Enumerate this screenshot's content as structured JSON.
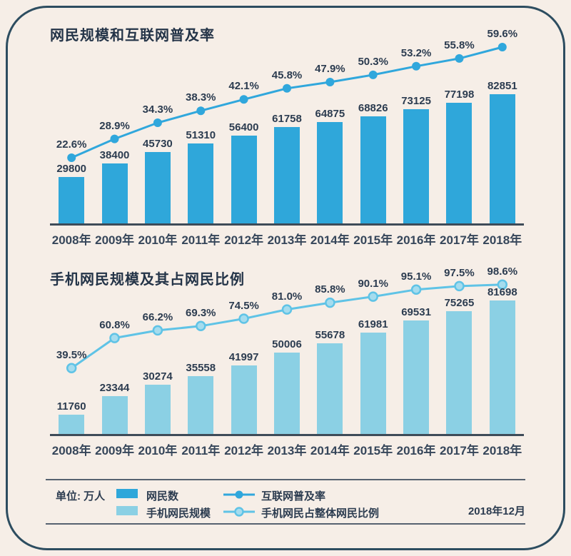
{
  "colors": {
    "background": "#f6eee7",
    "card_border": "#2d4d60",
    "bar_dark": "#2fa7da",
    "bar_light": "#8bd0e4",
    "line_dark": "#30a7dc",
    "line_light": "#5fc3e6",
    "marker_light_fill": "#a5dcee",
    "text": "#2c3c50",
    "axis": "#3e4b58"
  },
  "chart_data": [
    {
      "type": "bar+line",
      "title": "网民规模和互联网普及率",
      "categories": [
        "2008年",
        "2009年",
        "2010年",
        "2011年",
        "2012年",
        "2013年",
        "2014年",
        "2015年",
        "2016年",
        "2017年",
        "2018年"
      ],
      "series": [
        {
          "name": "网民数",
          "type": "bar",
          "unit": "万人",
          "values": [
            29800,
            38400,
            45730,
            51310,
            56400,
            61758,
            64875,
            68826,
            73125,
            77198,
            82851
          ]
        },
        {
          "name": "互联网普及率",
          "type": "line",
          "unit": "%",
          "values": [
            22.6,
            28.9,
            34.3,
            38.3,
            42.1,
            45.8,
            47.9,
            50.3,
            53.2,
            55.8,
            59.6
          ]
        }
      ],
      "baseline": 0,
      "grid": false,
      "data_labels": true
    },
    {
      "type": "bar+line",
      "title": "手机网民规模及其占网民比例",
      "categories": [
        "2008年",
        "2009年",
        "2010年",
        "2011年",
        "2012年",
        "2013年",
        "2014年",
        "2015年",
        "2016年",
        "2017年",
        "2018年"
      ],
      "series": [
        {
          "name": "手机网民规模",
          "type": "bar",
          "unit": "万人",
          "values": [
            11760,
            23344,
            30274,
            35558,
            41997,
            50006,
            55678,
            61981,
            69531,
            75265,
            81698
          ]
        },
        {
          "name": "手机网民占整体网民比例",
          "type": "line",
          "unit": "%",
          "values": [
            39.5,
            60.8,
            66.2,
            69.3,
            74.5,
            81.0,
            85.8,
            90.1,
            95.1,
            97.5,
            98.6
          ]
        }
      ],
      "baseline": 0,
      "grid": false,
      "data_labels": true
    }
  ],
  "legend": {
    "unit_label": "单位: 万人",
    "items": [
      {
        "label": "网民数",
        "marker": "swatch",
        "color_key": "bar_dark"
      },
      {
        "label": "手机网民规模",
        "marker": "swatch",
        "color_key": "bar_light"
      },
      {
        "label": "互联网普及率",
        "marker": "line-dot",
        "color_key": "line_dark"
      },
      {
        "label": "手机网民占整体网民比例",
        "marker": "line-dot-hollow",
        "color_key": "line_light"
      }
    ],
    "date_label": "2018年12月"
  }
}
